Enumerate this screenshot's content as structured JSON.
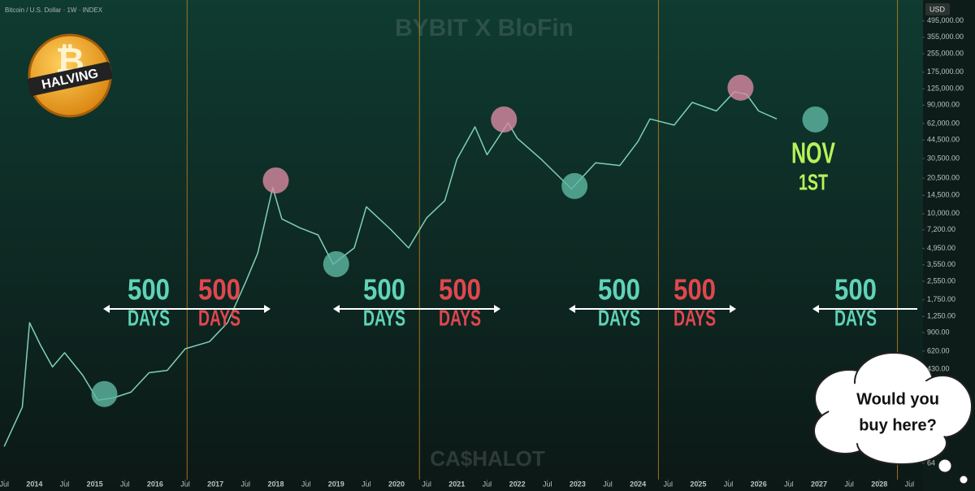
{
  "chart_data": {
    "type": "line",
    "title": "Bitcoin / U.S. Dollar · 1W · INDEX",
    "currency": "USD",
    "watermark_top": "BYBIT X BloFin",
    "watermark_bottom": "CA$HALOT",
    "logo_text": "HALVING",
    "log_scale": true,
    "grid": false,
    "x": [
      2013.5,
      2013.8,
      2013.92,
      2014.1,
      2014.3,
      2014.5,
      2014.8,
      2015.05,
      2015.3,
      2015.6,
      2015.9,
      2016.2,
      2016.5,
      2016.9,
      2017.2,
      2017.5,
      2017.7,
      2017.95,
      2018.1,
      2018.4,
      2018.7,
      2018.95,
      2019.3,
      2019.5,
      2019.9,
      2020.2,
      2020.5,
      2020.8,
      2021.0,
      2021.3,
      2021.5,
      2021.85,
      2022.0,
      2022.4,
      2022.9,
      2023.3,
      2023.7,
      2024.0,
      2024.2,
      2024.6,
      2024.9,
      2025.3,
      2025.6,
      2025.8,
      2026.0,
      2026.3
    ],
    "series": [
      {
        "color": "#7fcfb6",
        "values": [
          90,
          200,
          1100,
          700,
          450,
          600,
          380,
          230,
          240,
          270,
          400,
          420,
          650,
          750,
          1100,
          2500,
          4500,
          17000,
          9000,
          7500,
          6500,
          3600,
          5000,
          11500,
          7300,
          5000,
          9200,
          13000,
          30000,
          58000,
          33000,
          63000,
          46000,
          30000,
          16500,
          28000,
          26500,
          43000,
          68000,
          60000,
          95000,
          80000,
          118000,
          112000,
          80000,
          68000
        ]
      }
    ],
    "highlights": [
      {
        "x": 2015.16,
        "y": 260,
        "color": "#5fb8a4"
      },
      {
        "x": 2018.0,
        "y": 19600,
        "color": "#d98aa2"
      },
      {
        "x": 2019.0,
        "y": 3600,
        "color": "#5fb8a4"
      },
      {
        "x": 2021.78,
        "y": 67300,
        "color": "#d98aa2"
      },
      {
        "x": 2022.95,
        "y": 17500,
        "color": "#5fb8a4"
      },
      {
        "x": 2025.7,
        "y": 128000,
        "color": "#d98aa2"
      },
      {
        "x": 2026.94,
        "y": 67300,
        "color": "#5fb8a4"
      }
    ],
    "halvings": [
      2016.53,
      2020.38,
      2024.34,
      2028.3
    ],
    "halving_color": "#c9851f",
    "annotations": [
      {
        "value": 500,
        "label": "DAYS",
        "color": "#5fd3b8"
      },
      {
        "value": 500,
        "label": "DAYS",
        "color": "#e0474f"
      },
      {
        "value": 500,
        "label": "DAYS",
        "color": "#5fd3b8"
      },
      {
        "value": 500,
        "label": "DAYS",
        "color": "#e0474f"
      },
      {
        "value": 500,
        "label": "DAYS",
        "color": "#5fd3b8"
      },
      {
        "value": 500,
        "label": "DAYS",
        "color": "#e0474f"
      },
      {
        "value": 500,
        "label": "DAYS",
        "color": "#5fd3b8"
      }
    ],
    "callout": {
      "lines": [
        "NOV",
        "1ST"
      ],
      "color": "#b7f25a"
    },
    "bubble": {
      "lines": [
        "Would you",
        "buy here?"
      ]
    },
    "xlim": [
      2013.43,
      2028.71
    ],
    "xticks": [
      {
        "value": 2013.5,
        "label": "Jul"
      },
      2014,
      {
        "value": 2014.5,
        "label": "Jul"
      },
      2015,
      {
        "value": 2015.5,
        "label": "Jul"
      },
      2016,
      {
        "value": 2016.5,
        "label": "Jul"
      },
      2017,
      {
        "value": 2017.5,
        "label": "Jul"
      },
      2018,
      {
        "value": 2018.5,
        "label": "Jul"
      },
      2019,
      {
        "value": 2019.5,
        "label": "Jul"
      },
      2020,
      {
        "value": 2020.5,
        "label": "Jul"
      },
      2021,
      {
        "value": 2021.5,
        "label": "Jul"
      },
      2022,
      {
        "value": 2022.5,
        "label": "Jul"
      },
      2023,
      {
        "value": 2023.5,
        "label": "Jul"
      },
      2024,
      {
        "value": 2024.5,
        "label": "Jul"
      },
      2025,
      {
        "value": 2025.5,
        "label": "Jul"
      },
      2026,
      {
        "value": 2026.5,
        "label": "Jul"
      },
      2027,
      {
        "value": 2027.5,
        "label": "Jul"
      },
      2028,
      {
        "value": 2028.5,
        "label": "Jul"
      }
    ],
    "ylim": [
      46,
      755000
    ],
    "yticks": [
      {
        "value": 495000,
        "label": "495,000.00"
      },
      {
        "value": 355000,
        "label": "355,000.00"
      },
      {
        "value": 255000,
        "label": "255,000.00"
      },
      {
        "value": 175000,
        "label": "175,000.00"
      },
      {
        "value": 125000,
        "label": "125,000.00"
      },
      {
        "value": 90000,
        "label": "90,000.00"
      },
      {
        "value": 62000,
        "label": "62,000.00"
      },
      {
        "value": 44500,
        "label": "44,500.00"
      },
      {
        "value": 30500,
        "label": "30,500.00"
      },
      {
        "value": 20500,
        "label": "20,500.00"
      },
      {
        "value": 14500,
        "label": "14,500.00"
      },
      {
        "value": 10000,
        "label": "10,000.00"
      },
      {
        "value": 7200,
        "label": "7,200.00"
      },
      {
        "value": 4950,
        "label": "4,950.00"
      },
      {
        "value": 3550,
        "label": "3,550.00"
      },
      {
        "value": 2550,
        "label": "2,550.00"
      },
      {
        "value": 1750,
        "label": "1,750.00"
      },
      {
        "value": 1250,
        "label": "1,250.00"
      },
      {
        "value": 900,
        "label": "900.00"
      },
      {
        "value": 620,
        "label": "620.00"
      },
      {
        "value": 430,
        "label": "430.00"
      },
      64
    ]
  }
}
